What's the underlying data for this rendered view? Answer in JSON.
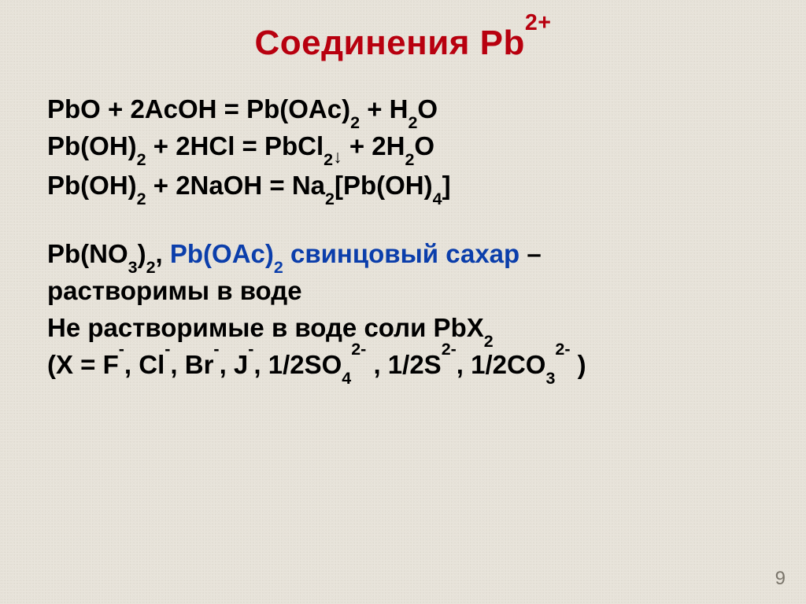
{
  "colors": {
    "background": "#e8e4db",
    "title": "#b8000f",
    "body_text": "#000000",
    "accent_blue": "#0b3eab",
    "page_number": "#7a756b"
  },
  "typography": {
    "family": "Arial",
    "title_size_pt": 44,
    "body_size_pt": 33,
    "body_weight": "bold",
    "line_height": 1.42
  },
  "title": {
    "prefix": "Соединения Pb",
    "superscript": "2+"
  },
  "equations": {
    "line1": {
      "t1": "PbO + 2AcOH = Pb(OAc)",
      "sub1": "2",
      "t2": " + H",
      "sub2": "2",
      "t3": "O"
    },
    "line2": {
      "t1": "Pb(OH)",
      "sub1": "2",
      "t2": " + 2HCl = PbCl",
      "sub2": "2",
      "arrow": "↓",
      "t3": " + 2H",
      "sub3": "2",
      "t4": "O"
    },
    "line3": {
      "t1": "Pb(OH)",
      "sub1": "2",
      "t2": " + 2NaOH = Na",
      "sub2": "2",
      "t3": "[Pb(OH)",
      "sub3": "4",
      "t4": "]"
    }
  },
  "solubility": {
    "line1": {
      "t1": "Pb(NO",
      "sub1": "3",
      "t2": ")",
      "sub2": "2",
      "t3": ", ",
      "blue_t1": "Pb(OAc)",
      "blue_sub1": "2",
      "blue_t2": " свинцовый сахар",
      "t4": " –"
    },
    "line2": "растворимы в воде",
    "line3": {
      "t1": "Не растворимые в воде соли PbX",
      "sub1": "2"
    },
    "line4": {
      "t1": "(X = F",
      "sup1": "-",
      "t2": ", Cl",
      "sup2": "-",
      "t3": ", Br",
      "sup3": "-",
      "t4": ", J",
      "sup4": "-",
      "t5": ", 1/2SO",
      "sub1": "4",
      "sup5": "2-",
      "t6": " , 1/2S",
      "sup6": "2-",
      "t7": ", 1/2CO",
      "sub2": "3",
      "sup7": "2-",
      "t8": " )"
    }
  },
  "page_number": "9"
}
